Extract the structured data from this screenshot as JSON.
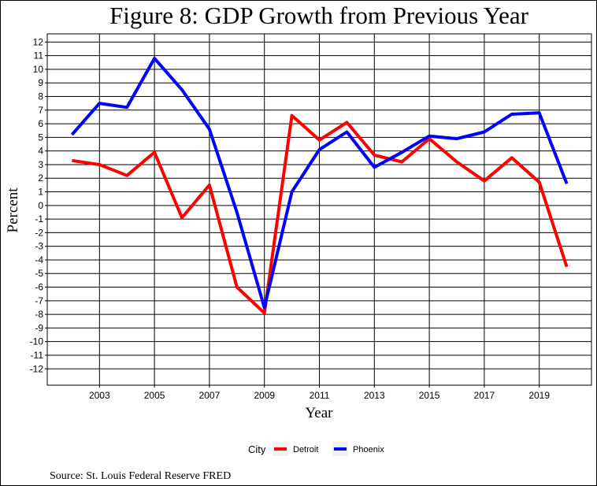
{
  "chart_data": {
    "type": "line",
    "title": "Figure 8: GDP Growth from Previous Year",
    "xlabel": "Year",
    "ylabel": "Percent",
    "x": [
      2002,
      2003,
      2004,
      2005,
      2006,
      2007,
      2008,
      2009,
      2010,
      2011,
      2012,
      2013,
      2014,
      2015,
      2016,
      2017,
      2018,
      2019,
      2020
    ],
    "xticks": [
      "2003",
      "2005",
      "2007",
      "2009",
      "2011",
      "2013",
      "2015",
      "2017",
      "2019"
    ],
    "yticks": [
      "12",
      "11",
      "10",
      "9",
      "8",
      "7",
      "6",
      "5",
      "4",
      "3",
      "2",
      "1",
      "0",
      "-1",
      "-2",
      "-3",
      "-4",
      "-5",
      "-6",
      "-7",
      "-8",
      "-9",
      "-10",
      "-11",
      "-12"
    ],
    "xlim": [
      2001.1,
      2020.9
    ],
    "ylim": [
      -13.2,
      12.6
    ],
    "grid": true,
    "legend_placement": "bottom",
    "legend_title": "City",
    "series": [
      {
        "name": "Detroit",
        "color": "#ff0000",
        "values": [
          3.3,
          3.0,
          2.2,
          3.9,
          -0.9,
          1.5,
          -6.0,
          -7.9,
          6.6,
          4.8,
          6.1,
          3.7,
          3.2,
          4.9,
          3.2,
          1.8,
          3.5,
          1.7,
          -4.5
        ]
      },
      {
        "name": "Phoenix",
        "color": "#0000ff",
        "values": [
          5.2,
          7.5,
          7.2,
          10.8,
          8.5,
          5.6,
          -0.5,
          -7.5,
          1.0,
          4.1,
          5.4,
          2.8,
          3.9,
          5.1,
          4.9,
          5.4,
          6.7,
          6.8,
          1.6
        ]
      }
    ],
    "source": "Source: St. Louis Federal Reserve FRED"
  }
}
